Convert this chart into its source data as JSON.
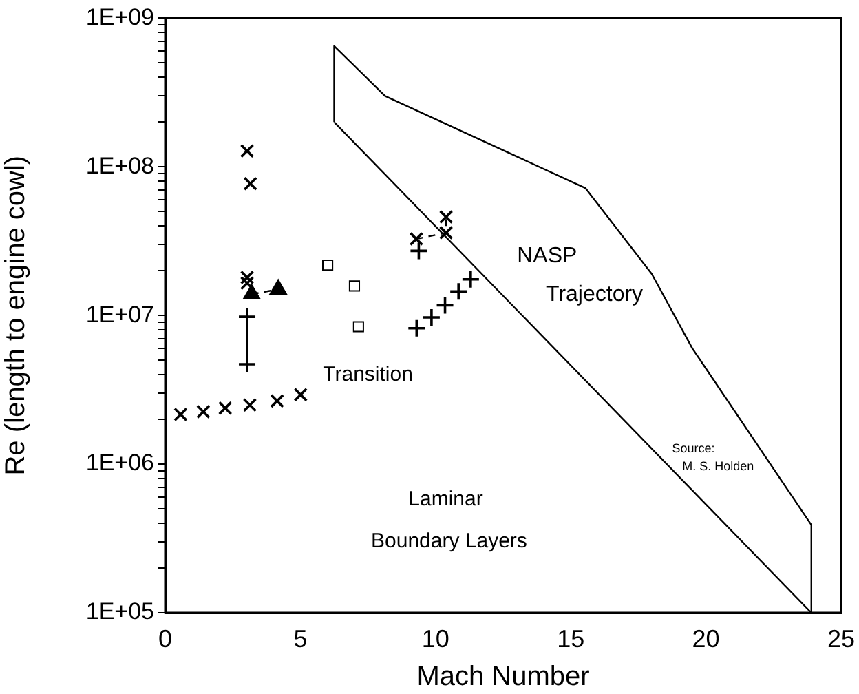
{
  "chart_data": {
    "type": "scatter",
    "xlabel": "Mach Number",
    "ylabel": "Re (length to engine cowl)",
    "log": "y",
    "grid": false,
    "legend": false,
    "xlim": [
      0,
      25
    ],
    "xticks": [
      0,
      5,
      10,
      15,
      20,
      25
    ],
    "ylim": [
      100000,
      1000000000
    ],
    "yticks": [
      {
        "value": 100000,
        "label": "1E+05"
      },
      {
        "value": 200000,
        "label": null
      },
      {
        "value": 300000,
        "label": null
      },
      {
        "value": 400000,
        "label": null
      },
      {
        "value": 500000,
        "label": null
      },
      {
        "value": 600000,
        "label": null
      },
      {
        "value": 700000,
        "label": null
      },
      {
        "value": 800000,
        "label": null
      },
      {
        "value": 900000,
        "label": null
      },
      {
        "value": 1000000,
        "label": "1E+06"
      },
      {
        "value": 2000000,
        "label": null
      },
      {
        "value": 3000000,
        "label": null
      },
      {
        "value": 4000000,
        "label": null
      },
      {
        "value": 5000000,
        "label": null
      },
      {
        "value": 6000000,
        "label": null
      },
      {
        "value": 7000000,
        "label": null
      },
      {
        "value": 8000000,
        "label": null
      },
      {
        "value": 9000000,
        "label": null
      },
      {
        "value": 10000000,
        "label": "1E+07"
      },
      {
        "value": 20000000,
        "label": null
      },
      {
        "value": 30000000,
        "label": null
      },
      {
        "value": 40000000,
        "label": null
      },
      {
        "value": 50000000,
        "label": null
      },
      {
        "value": 60000000,
        "label": null
      },
      {
        "value": 70000000,
        "label": null
      },
      {
        "value": 80000000,
        "label": null
      },
      {
        "value": 90000000,
        "label": null
      },
      {
        "value": 100000000,
        "label": "1E+08"
      },
      {
        "value": 200000000,
        "label": null
      },
      {
        "value": 300000000,
        "label": null
      },
      {
        "value": 400000000,
        "label": null
      },
      {
        "value": 500000000,
        "label": null
      },
      {
        "value": 600000000,
        "label": null
      },
      {
        "value": 700000000,
        "label": null
      },
      {
        "value": 800000000,
        "label": null
      },
      {
        "value": 900000000,
        "label": null
      },
      {
        "value": 1000000000,
        "label": "1E+09"
      }
    ],
    "series": [
      {
        "type": "scatter",
        "marker": "cross",
        "color": "#000000",
        "x": [
          0.57,
          1.41,
          2.22,
          3.13,
          4.14,
          5.01
        ],
        "values": [
          2160000,
          2250000,
          2380000,
          2500000,
          2660000,
          2930000
        ]
      },
      {
        "type": "scatter",
        "marker": "plus",
        "color": "#000000",
        "x": [
          9.3,
          9.85,
          10.35,
          10.85,
          11.3
        ],
        "values": [
          8200000,
          9700000,
          11700000,
          14500000,
          17500000
        ]
      },
      {
        "type": "scatter",
        "marker": "cross",
        "color": "#000000",
        "x": [
          3.03
        ],
        "values": [
          128000000
        ]
      },
      {
        "type": "scatter",
        "marker": "cross",
        "color": "#000000",
        "x": [
          3.15,
          3.03,
          3.03
        ],
        "values": [
          77000000,
          18000000,
          16500000
        ]
      },
      {
        "type": "line",
        "marker": "triangle",
        "line_style": "dashed",
        "color": "#000000",
        "x": [
          3.2,
          4.18
        ],
        "values": [
          13900000,
          15000000
        ]
      },
      {
        "type": "line",
        "marker": "plus",
        "line_style": "solid",
        "color": "#000000",
        "x": [
          3.03,
          3.03
        ],
        "values": [
          9800000,
          4700000
        ]
      },
      {
        "type": "scatter",
        "marker": "square",
        "color": "#000000",
        "x": [
          6.01,
          7.0,
          7.15
        ],
        "values": [
          21800000,
          15800000,
          8400000
        ]
      },
      {
        "type": "line",
        "marker": "cross",
        "line_style": "dashed",
        "color": "#000000",
        "x": [
          9.29,
          10.39,
          10.39
        ],
        "values": [
          32700000,
          36000000,
          46000000
        ]
      },
      {
        "type": "scatter",
        "marker": "plus",
        "color": "#000000",
        "x": [
          9.38
        ],
        "values": [
          27200000
        ]
      },
      {
        "type": "line",
        "marker": "none",
        "line_style": "solid",
        "color": "#000000",
        "x": [
          6.25,
          6.25,
          8.13,
          15.54,
          18.0,
          19.5,
          23.9,
          23.9
        ],
        "values": [
          200000000,
          650000000,
          300000000,
          72000000,
          19000000,
          6000000,
          390000,
          100000
        ]
      },
      {
        "type": "line",
        "marker": "none",
        "line_style": "solid",
        "color": "#000000",
        "x": [
          6.25,
          23.9
        ],
        "values": [
          200000000,
          100000
        ]
      }
    ],
    "annotations": [
      "Transition",
      "NASP",
      "Trajectory",
      "Laminar",
      "Boundary Layers",
      "Source:",
      "M. S. Holden"
    ]
  }
}
